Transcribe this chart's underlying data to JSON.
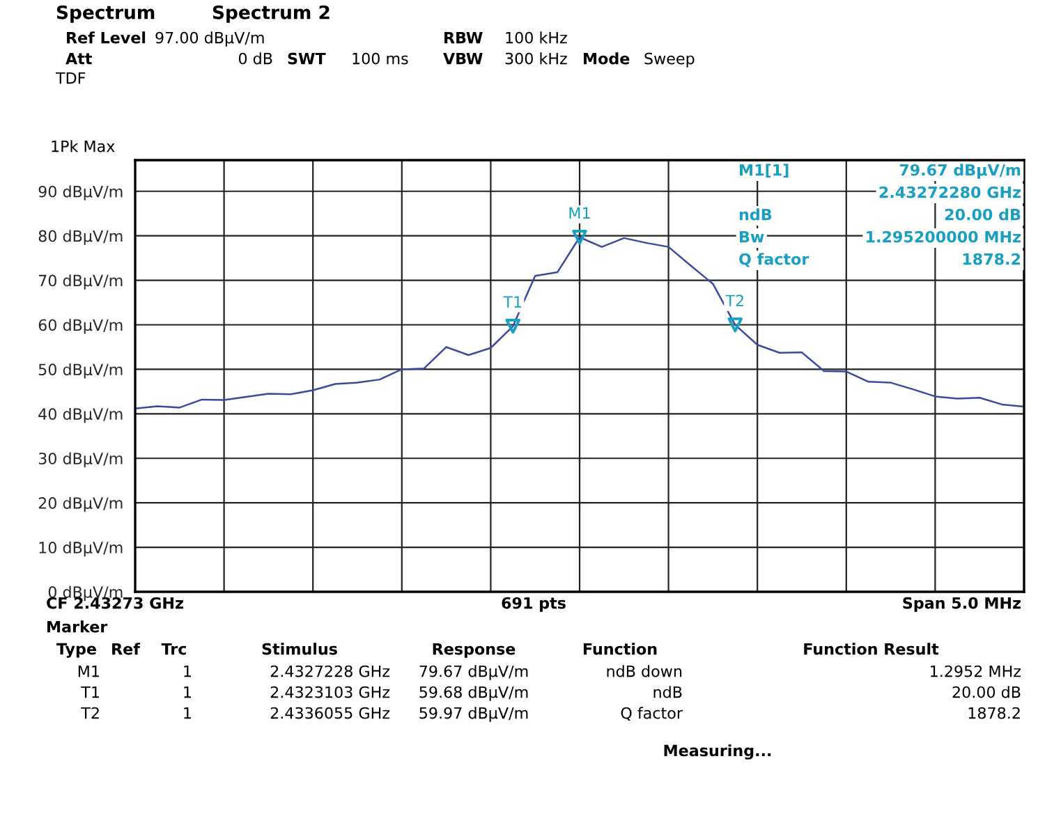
{
  "chart_data": {
    "type": "line",
    "categories": [
      null,
      null,
      null,
      null,
      null,
      null,
      null,
      null,
      null,
      null,
      null,
      null,
      null,
      null,
      null,
      null,
      null,
      null,
      null,
      null,
      null,
      null,
      null,
      null,
      null,
      null,
      null,
      null,
      null,
      null,
      null,
      null,
      null,
      null,
      null,
      null,
      null,
      null,
      null,
      null,
      null
    ],
    "series": [
      {
        "color": "#3b4a9c",
        "marker": "none",
        "values": [
          41.2,
          41.7,
          41.4,
          43.2,
          43.1,
          43.8,
          44.5,
          44.4,
          45.3,
          46.7,
          47.0,
          47.7,
          50.0,
          50.2,
          55.0,
          53.2,
          54.8,
          59.68,
          71.0,
          71.8,
          79.67,
          77.5,
          79.5,
          78.4,
          77.5,
          73.3,
          69.2,
          59.97,
          55.5,
          53.7,
          53.8,
          49.6,
          49.5,
          47.2,
          47.0,
          45.5,
          43.9,
          43.4,
          43.6,
          42.1,
          41.6
        ]
      },
      {
        "type": "scatter",
        "name": "M1",
        "color": "#1a9fc0",
        "marker": "triangle",
        "values": [
          null,
          null,
          null,
          null,
          null,
          null,
          null,
          null,
          null,
          null,
          null,
          null,
          null,
          null,
          null,
          null,
          null,
          null,
          null,
          null,
          79.67,
          null,
          null,
          null,
          null,
          null,
          null,
          null,
          null,
          null,
          null,
          null,
          null,
          null,
          null,
          null,
          null,
          null,
          null,
          null,
          null
        ]
      },
      {
        "type": "scatter",
        "name": "T1",
        "color": "#1a9fc0",
        "marker": "triangle",
        "values": [
          null,
          null,
          null,
          null,
          null,
          null,
          null,
          null,
          null,
          null,
          null,
          null,
          null,
          null,
          null,
          null,
          null,
          59.68,
          null,
          null,
          null,
          null,
          null,
          null,
          null,
          null,
          null,
          null,
          null,
          null,
          null,
          null,
          null,
          null,
          null,
          null,
          null,
          null,
          null,
          null,
          null
        ]
      },
      {
        "type": "scatter",
        "name": "T2",
        "color": "#1a9fc0",
        "marker": "triangle",
        "values": [
          null,
          null,
          null,
          null,
          null,
          null,
          null,
          null,
          null,
          null,
          null,
          null,
          null,
          null,
          null,
          null,
          null,
          null,
          null,
          null,
          null,
          null,
          null,
          null,
          null,
          null,
          null,
          59.97,
          null,
          null,
          null,
          null,
          null,
          null,
          null,
          null,
          null,
          null,
          null,
          null,
          null
        ]
      }
    ],
    "ylim": [
      0,
      97
    ],
    "yticks": [
      {
        "value": 0,
        "label": "0 dBµV/m"
      },
      {
        "value": 10,
        "label": "10 dBµV/m"
      },
      {
        "value": 20,
        "label": "20 dBµV/m"
      },
      {
        "value": 30,
        "label": "30 dBµV/m"
      },
      {
        "value": 40,
        "label": "40 dBµV/m"
      },
      {
        "value": 50,
        "label": "50 dBµV/m"
      },
      {
        "value": 60,
        "label": "60 dBµV/m"
      },
      {
        "value": 70,
        "label": "70 dBµV/m"
      },
      {
        "value": 80,
        "label": "80 dBµV/m"
      },
      {
        "value": 90,
        "label": "90 dBµV/m"
      }
    ],
    "grid": true,
    "legend": false,
    "annotations": [
      "Spectrum",
      "Spectrum 2",
      "Ref Level",
      "97.00 dBµV/m",
      "Att",
      "0 dB",
      "SWT",
      "100 ms",
      "RBW",
      "100 kHz",
      "VBW",
      "300 kHz",
      "Mode",
      "Sweep",
      "TDF",
      "1Pk Max",
      "M1[1]",
      "79.67 dBµV/m",
      "2.43272280 GHz",
      "ndB",
      "20.00 dB",
      "Bw",
      "1.295200000 MHz",
      "Q factor",
      "1878.2",
      "CF 2.43273 GHz",
      "691 pts",
      "Span 5.0 MHz",
      "Marker",
      "Type",
      "Ref",
      "Trc",
      "Stimulus",
      "Response",
      "Function",
      "Function Result",
      "M1",
      "1",
      "2.4327228 GHz",
      "79.67 dBµV/m",
      "ndB down",
      "1.2952 MHz",
      "T1",
      "1",
      "2.4323103 GHz",
      "59.68 dBµV/m",
      "ndB",
      "20.00 dB",
      "T2",
      "1",
      "2.4336055 GHz",
      "59.97 dBµV/m",
      "Q factor",
      "1878.2",
      "Measuring..."
    ]
  }
}
